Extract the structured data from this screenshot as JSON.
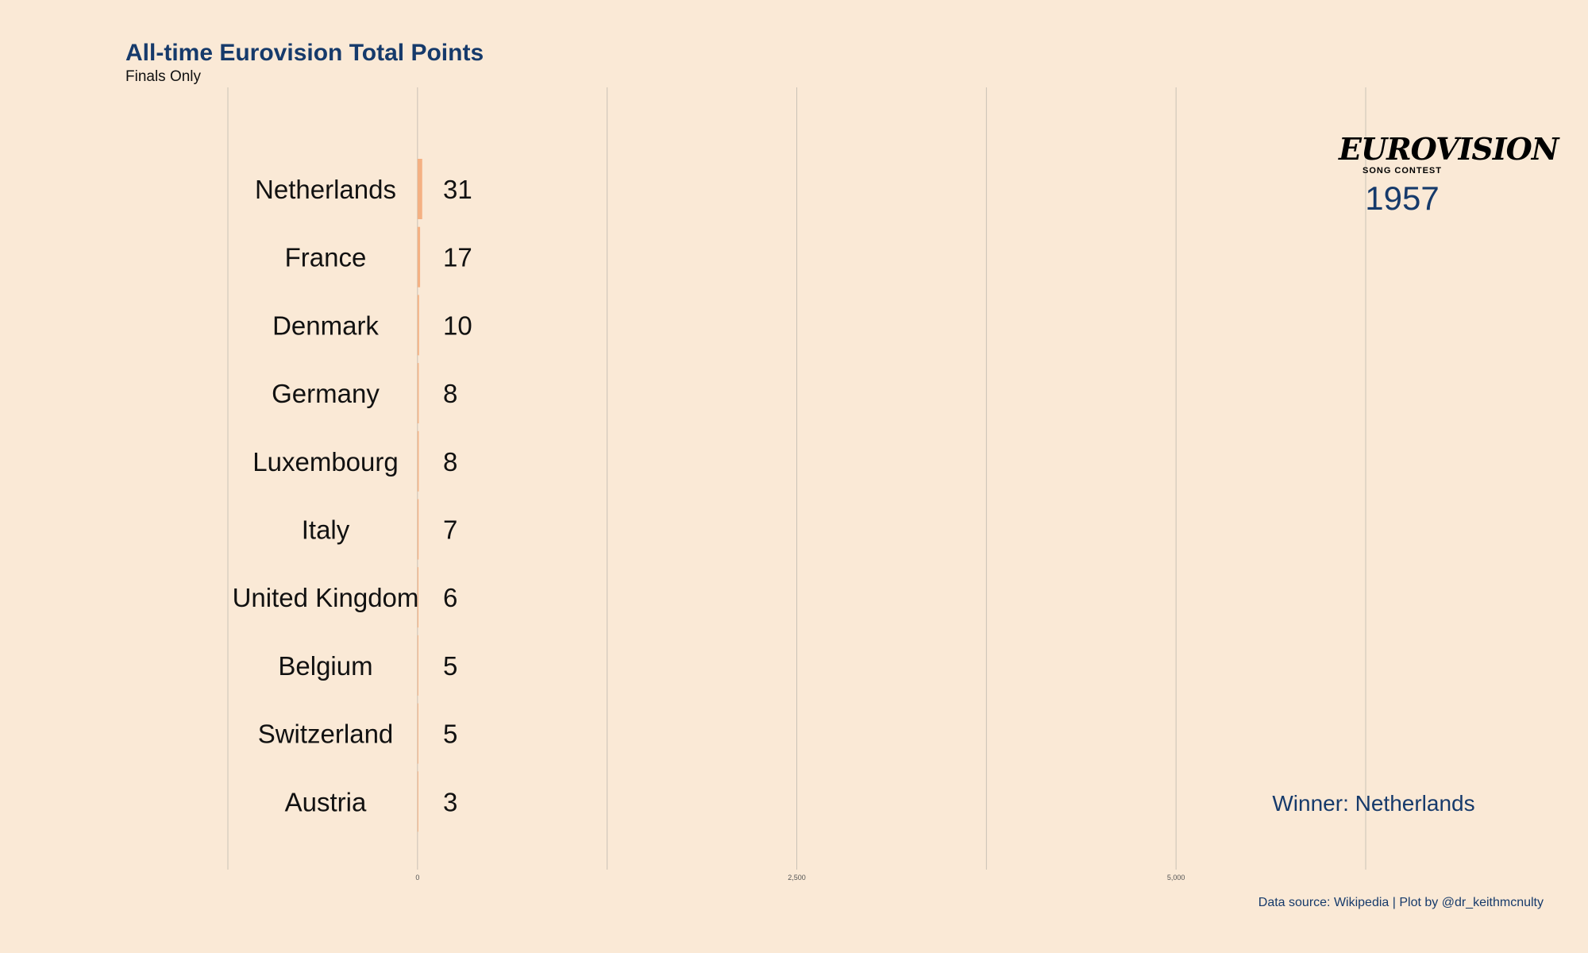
{
  "chart_data": {
    "type": "bar",
    "orientation": "horizontal",
    "title": "All-time Eurovision Total Points",
    "subtitle": "Finals Only",
    "categories": [
      "Netherlands",
      "France",
      "Denmark",
      "Germany",
      "Luxembourg",
      "Italy",
      "United Kingdom",
      "Belgium",
      "Switzerland",
      "Austria"
    ],
    "values": [
      31,
      17,
      10,
      8,
      8,
      7,
      6,
      5,
      5,
      3
    ],
    "value_labels": [
      "31",
      "17",
      "10",
      "8",
      "8",
      "7",
      "6",
      "5",
      "5",
      "3"
    ],
    "xlim": [
      -1250,
      6250
    ],
    "xticks": [
      0,
      2500,
      5000
    ],
    "xtick_labels": [
      "0",
      "2,500",
      "5,000"
    ],
    "gridlines": [
      -1250,
      0,
      1250,
      2500,
      3750,
      5000,
      6250
    ],
    "grid": true,
    "bar_color": "#f4b183",
    "background": "#fae9d6",
    "year": "1957",
    "winner_text": "Winner: Netherlands",
    "caption": "Data source: Wikipedia | Plot by @dr_keithmcnulty"
  },
  "logo": {
    "word": "EUROVISION",
    "sub": "SONG CONTEST"
  },
  "colors": {
    "title": "#163a6b",
    "text": "#111111",
    "grid": "#c9c2b6"
  }
}
